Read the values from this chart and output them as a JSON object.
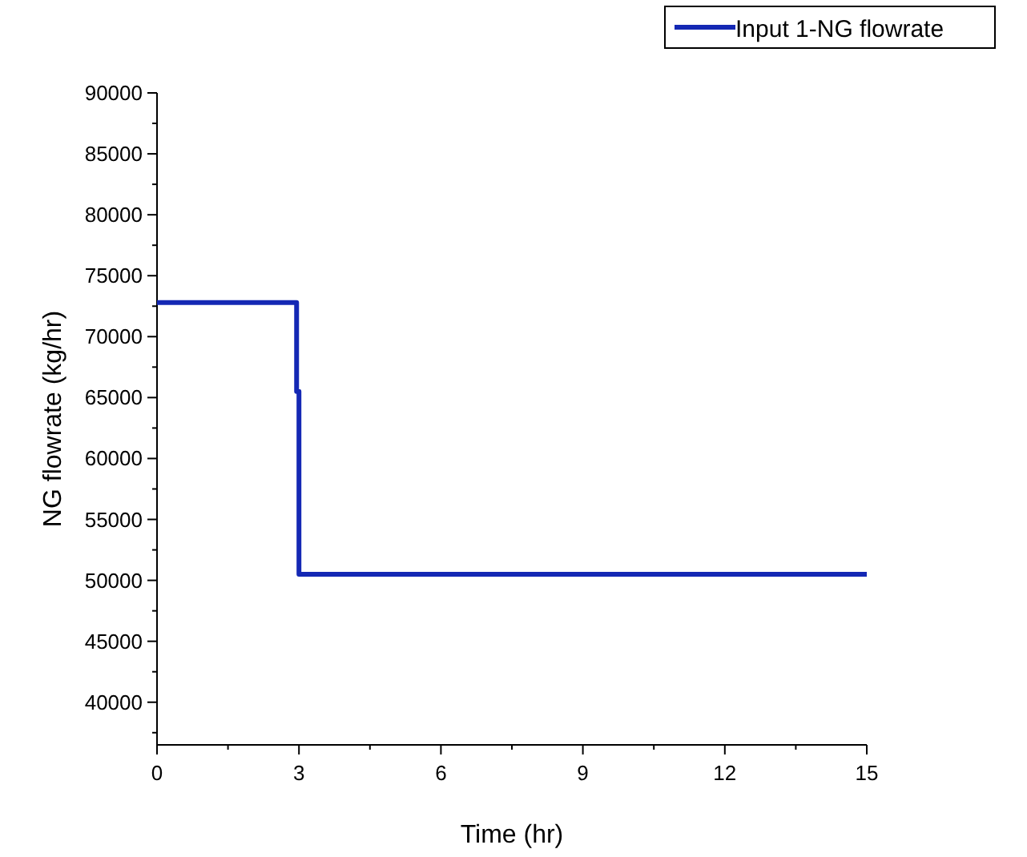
{
  "chart_data": {
    "type": "line",
    "xlabel": "Time (hr)",
    "ylabel": "NG flowrate (kg/hr)",
    "x": [
      0,
      2.95,
      2.95,
      3,
      3,
      15
    ],
    "series": [
      {
        "name": "Input 1-NG flowrate",
        "color": "#1428b4",
        "values": [
          72800,
          72800,
          65500,
          65500,
          50500,
          50500
        ]
      }
    ],
    "xlim": [
      0,
      15
    ],
    "ylim": [
      36500,
      90000
    ],
    "xticks": [
      0,
      {
        "value": 1.5,
        "label": null
      },
      3,
      {
        "value": 4.5,
        "label": null
      },
      6,
      {
        "value": 7.5,
        "label": null
      },
      9,
      {
        "value": 10.5,
        "label": null
      },
      12,
      {
        "value": 13.5,
        "label": null
      },
      15
    ],
    "yticks": [
      {
        "value": 37500,
        "label": null
      },
      40000,
      {
        "value": 42500,
        "label": null
      },
      45000,
      {
        "value": 47500,
        "label": null
      },
      50000,
      {
        "value": 52500,
        "label": null
      },
      55000,
      {
        "value": 57500,
        "label": null
      },
      60000,
      {
        "value": 62500,
        "label": null
      },
      65000,
      {
        "value": 67500,
        "label": null
      },
      70000,
      {
        "value": 72500,
        "label": null
      },
      75000,
      {
        "value": 77500,
        "label": null
      },
      80000,
      {
        "value": 82500,
        "label": null
      },
      85000,
      {
        "value": 87500,
        "label": null
      },
      90000
    ],
    "legend": "top right",
    "line_style": "solid"
  }
}
